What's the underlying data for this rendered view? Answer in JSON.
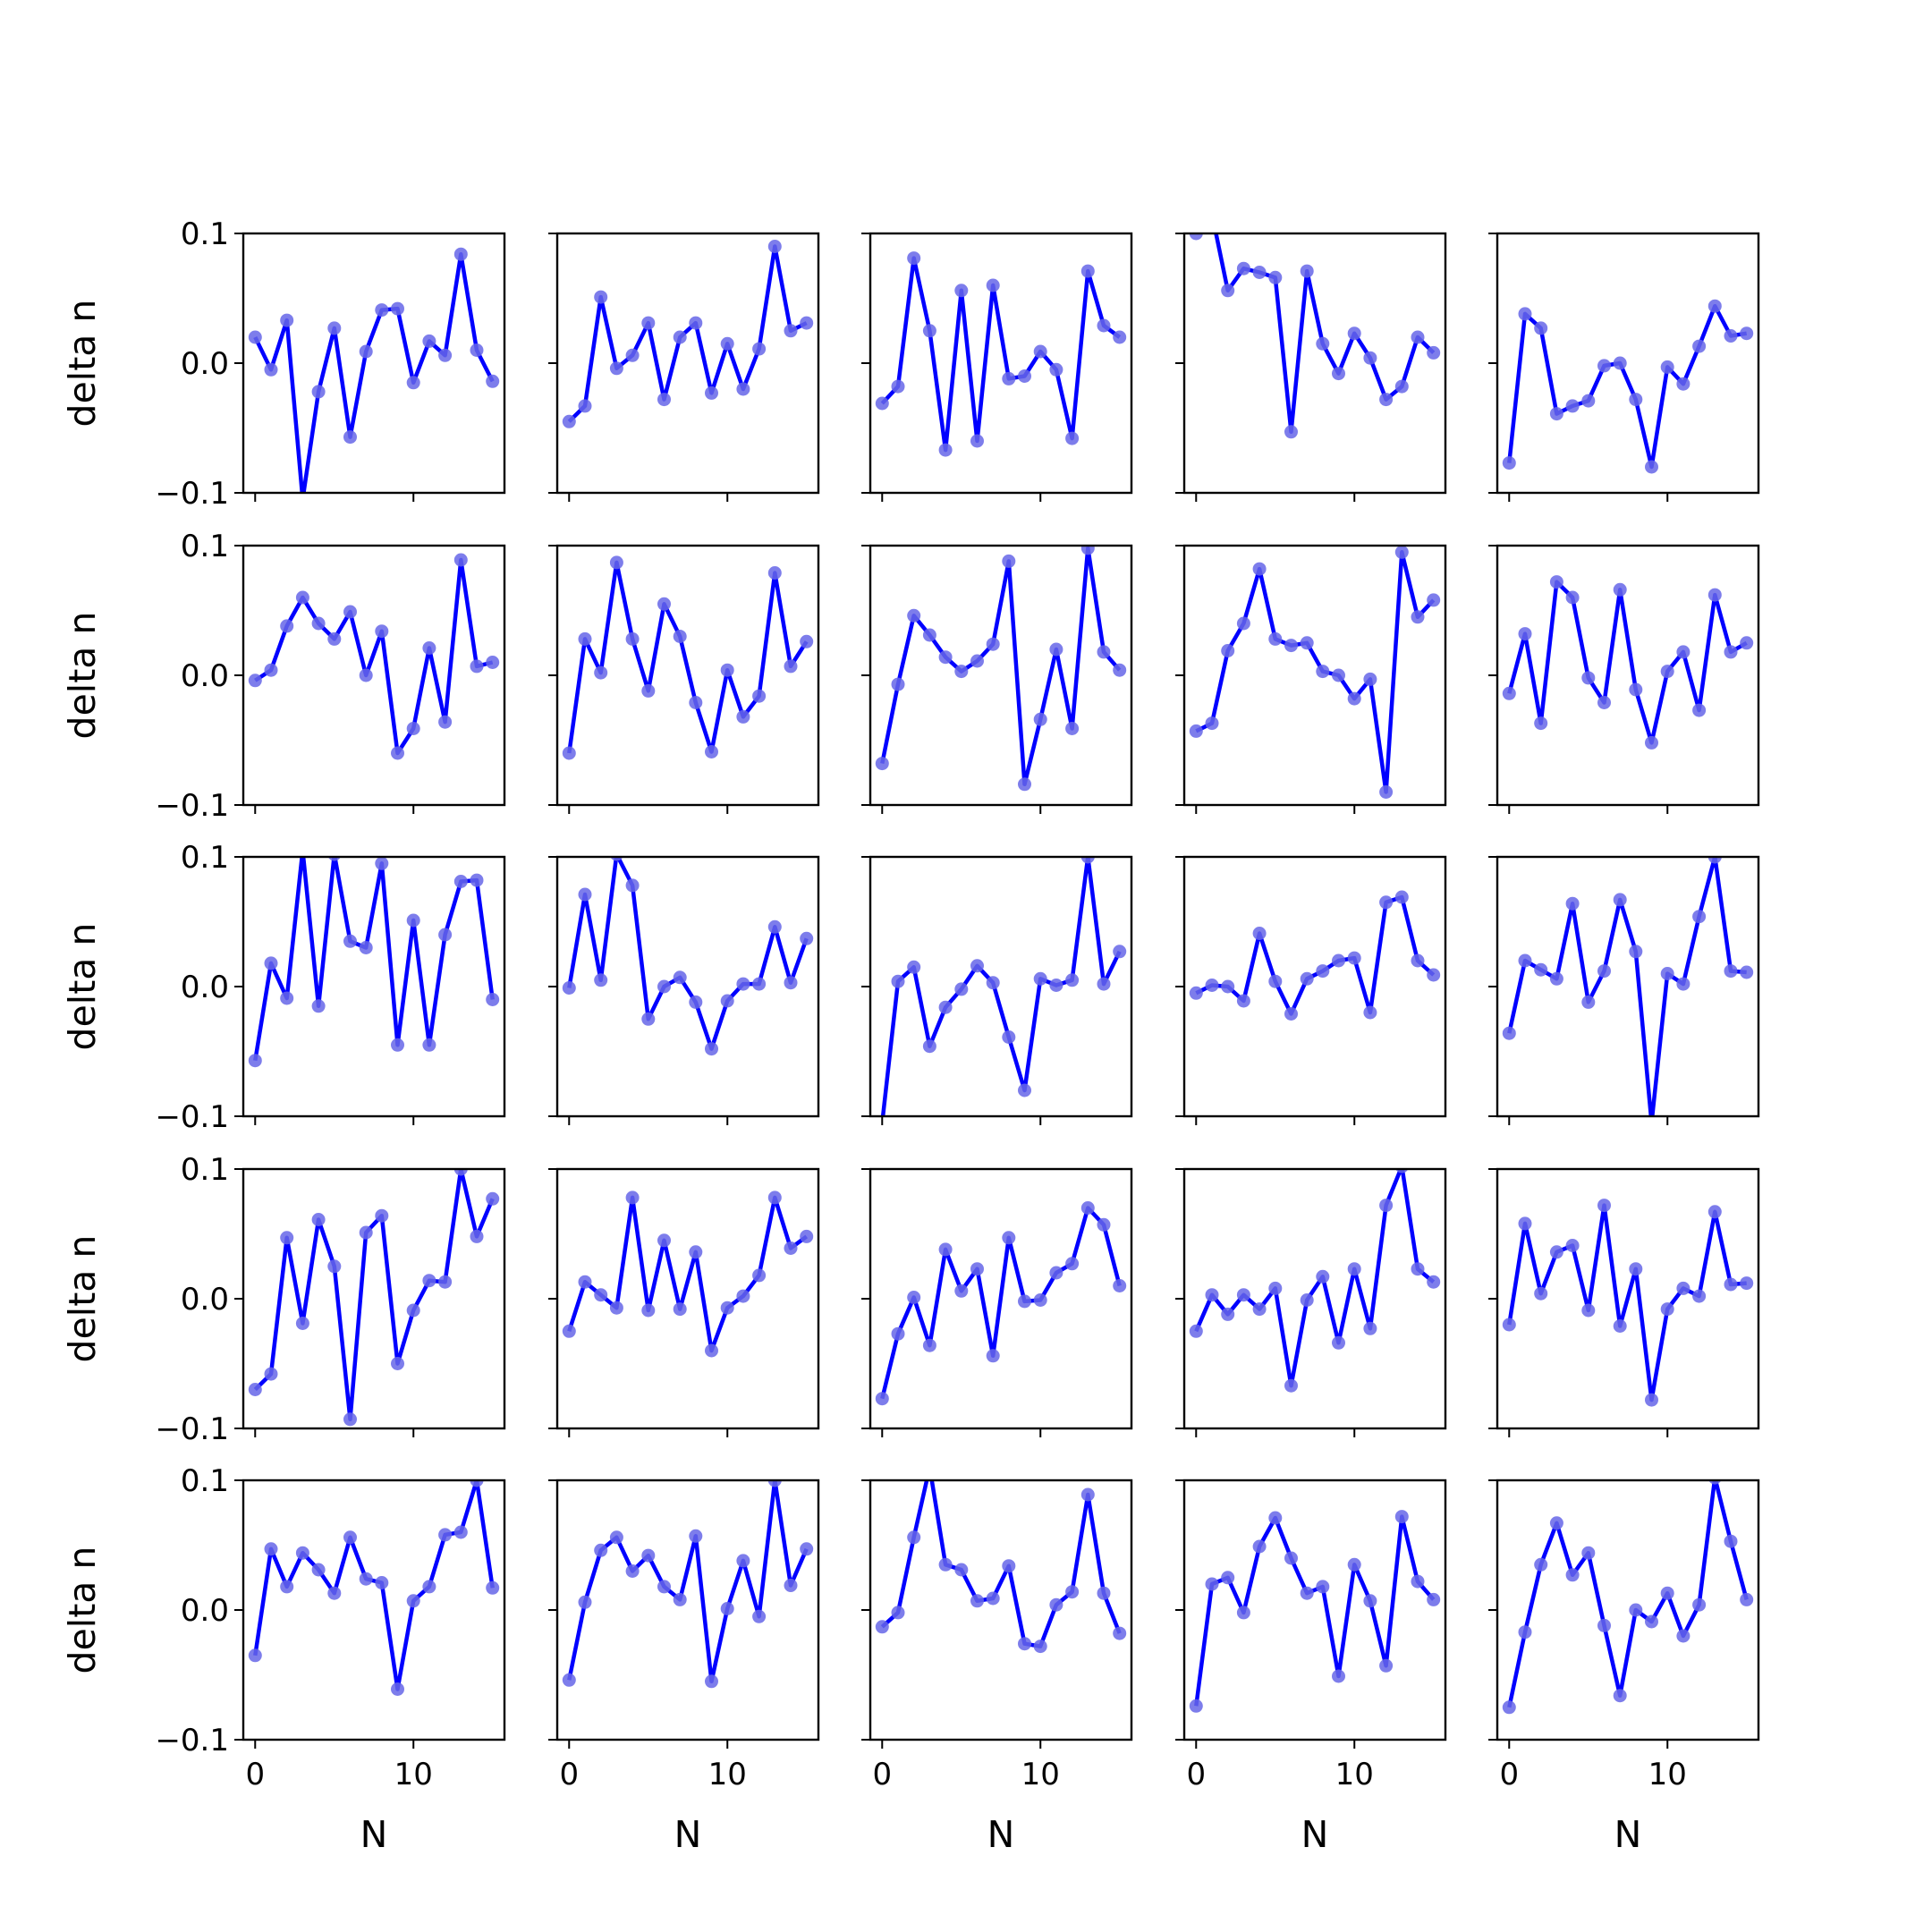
{
  "chart_data": {
    "type": "line",
    "layout": "5x5 grid of subplots, shared x and y axes",
    "x": [
      0,
      1,
      2,
      3,
      4,
      5,
      6,
      7,
      8,
      9,
      10,
      11,
      12,
      13,
      14,
      15
    ],
    "xlabel": "N",
    "ylabel": "delta n",
    "ylim": [
      -0.1,
      0.1
    ],
    "xticks": [
      0,
      10
    ],
    "xtick_labels": [
      "0",
      "10"
    ],
    "yticks": [
      -0.1,
      0.0,
      0.1
    ],
    "ytick_labels": [
      "−0.1",
      "0.0",
      "0.1"
    ],
    "grid": false,
    "line_color": "#0000ff",
    "marker_color": "#6666e8",
    "panels": [
      [
        [
          0.02,
          -0.005,
          0.033,
          -0.105,
          -0.022,
          0.027,
          -0.057,
          0.009,
          0.041,
          0.042,
          -0.015,
          0.017,
          0.006,
          0.084,
          0.01,
          -0.014
        ],
        [
          -0.045,
          -0.033,
          0.051,
          -0.004,
          0.006,
          0.031,
          -0.028,
          0.02,
          0.031,
          -0.023,
          0.015,
          -0.02,
          0.011,
          0.09,
          0.025,
          0.031
        ],
        [
          -0.031,
          -0.018,
          0.081,
          0.025,
          -0.067,
          0.056,
          -0.06,
          0.06,
          -0.012,
          -0.01,
          0.009,
          -0.005,
          -0.058,
          0.071,
          0.029,
          0.02
        ],
        [
          0.1,
          0.115,
          0.056,
          0.073,
          0.07,
          0.066,
          -0.053,
          0.071,
          0.015,
          -0.008,
          0.023,
          0.004,
          -0.028,
          -0.018,
          0.02,
          0.008
        ],
        [
          -0.077,
          0.038,
          0.027,
          -0.039,
          -0.033,
          -0.029,
          -0.002,
          0.0,
          -0.028,
          -0.08,
          -0.003,
          -0.016,
          0.013,
          0.044,
          0.021,
          0.023
        ]
      ],
      [
        [
          -0.004,
          0.004,
          0.038,
          0.06,
          0.04,
          0.028,
          0.049,
          0.0,
          0.034,
          -0.06,
          -0.041,
          0.021,
          -0.036,
          0.089,
          0.007,
          0.01
        ],
        [
          -0.06,
          0.028,
          0.002,
          0.087,
          0.028,
          -0.012,
          0.055,
          0.03,
          -0.021,
          -0.059,
          0.004,
          -0.032,
          -0.016,
          0.079,
          0.007,
          0.026
        ],
        [
          -0.068,
          -0.007,
          0.046,
          0.031,
          0.014,
          0.003,
          0.011,
          0.024,
          0.088,
          -0.084,
          -0.034,
          0.02,
          -0.041,
          0.098,
          0.018,
          0.004
        ],
        [
          -0.043,
          -0.037,
          0.019,
          0.04,
          0.082,
          0.028,
          0.023,
          0.025,
          0.003,
          0.0,
          -0.018,
          -0.003,
          -0.09,
          0.095,
          0.045,
          0.058
        ],
        [
          -0.014,
          0.032,
          -0.037,
          0.072,
          0.06,
          -0.002,
          -0.021,
          0.066,
          -0.011,
          -0.052,
          0.003,
          0.018,
          -0.027,
          0.062,
          0.018,
          0.025
        ]
      ],
      [
        [
          -0.057,
          0.018,
          -0.009,
          0.105,
          -0.015,
          0.102,
          0.035,
          0.03,
          0.095,
          -0.045,
          0.051,
          -0.045,
          0.04,
          0.081,
          0.082,
          -0.01
        ],
        [
          -0.001,
          0.071,
          0.005,
          0.102,
          0.078,
          -0.025,
          0.0,
          0.007,
          -0.012,
          -0.048,
          -0.011,
          0.002,
          0.002,
          0.046,
          0.003,
          0.037
        ],
        [
          -0.105,
          0.004,
          0.015,
          -0.046,
          -0.016,
          -0.002,
          0.016,
          0.003,
          -0.039,
          -0.08,
          0.006,
          0.001,
          0.005,
          0.1,
          0.002,
          0.027
        ],
        [
          -0.005,
          0.001,
          0.0,
          -0.011,
          0.041,
          0.004,
          -0.021,
          0.006,
          0.012,
          0.02,
          0.022,
          -0.02,
          0.065,
          0.069,
          0.02,
          0.009
        ],
        [
          -0.036,
          0.02,
          0.013,
          0.006,
          0.064,
          -0.012,
          0.012,
          0.067,
          0.027,
          -0.105,
          0.01,
          0.002,
          0.054,
          0.1,
          0.012,
          0.011
        ]
      ],
      [
        [
          -0.07,
          -0.058,
          0.047,
          -0.019,
          0.061,
          0.025,
          -0.093,
          0.051,
          0.064,
          -0.05,
          -0.009,
          0.014,
          0.013,
          0.1,
          0.048,
          0.077
        ],
        [
          -0.025,
          0.013,
          0.003,
          -0.007,
          0.078,
          -0.009,
          0.045,
          -0.008,
          0.036,
          -0.04,
          -0.007,
          0.002,
          0.018,
          0.078,
          0.039,
          0.048
        ],
        [
          -0.077,
          -0.027,
          0.001,
          -0.036,
          0.038,
          0.006,
          0.023,
          -0.044,
          0.047,
          -0.002,
          -0.001,
          0.02,
          0.027,
          0.07,
          0.057,
          0.01
        ],
        [
          -0.025,
          0.003,
          -0.012,
          0.003,
          -0.008,
          0.008,
          -0.067,
          -0.001,
          0.017,
          -0.034,
          0.023,
          -0.023,
          0.072,
          0.102,
          0.023,
          0.013
        ],
        [
          -0.02,
          0.058,
          0.004,
          0.036,
          0.041,
          -0.009,
          0.072,
          -0.021,
          0.023,
          -0.078,
          -0.008,
          0.008,
          0.002,
          0.067,
          0.011,
          0.012
        ]
      ],
      [
        [
          -0.035,
          0.047,
          0.018,
          0.044,
          0.031,
          0.013,
          0.056,
          0.024,
          0.021,
          -0.061,
          0.007,
          0.018,
          0.058,
          0.06,
          0.1,
          0.017
        ],
        [
          -0.054,
          0.006,
          0.046,
          0.056,
          0.03,
          0.042,
          0.018,
          0.008,
          0.057,
          -0.055,
          0.001,
          0.038,
          -0.005,
          0.1,
          0.019,
          0.047
        ],
        [
          -0.013,
          -0.002,
          0.056,
          0.11,
          0.035,
          0.031,
          0.007,
          0.009,
          0.034,
          -0.026,
          -0.028,
          0.004,
          0.014,
          0.089,
          0.013,
          -0.018
        ],
        [
          -0.074,
          0.02,
          0.025,
          -0.002,
          0.049,
          0.071,
          0.04,
          0.013,
          0.018,
          -0.051,
          0.035,
          0.007,
          -0.043,
          0.072,
          0.022,
          0.008
        ],
        [
          -0.075,
          -0.017,
          0.035,
          0.067,
          0.027,
          0.044,
          -0.012,
          -0.066,
          0.0,
          -0.009,
          0.013,
          -0.02,
          0.004,
          0.102,
          0.053,
          0.008
        ]
      ]
    ]
  }
}
